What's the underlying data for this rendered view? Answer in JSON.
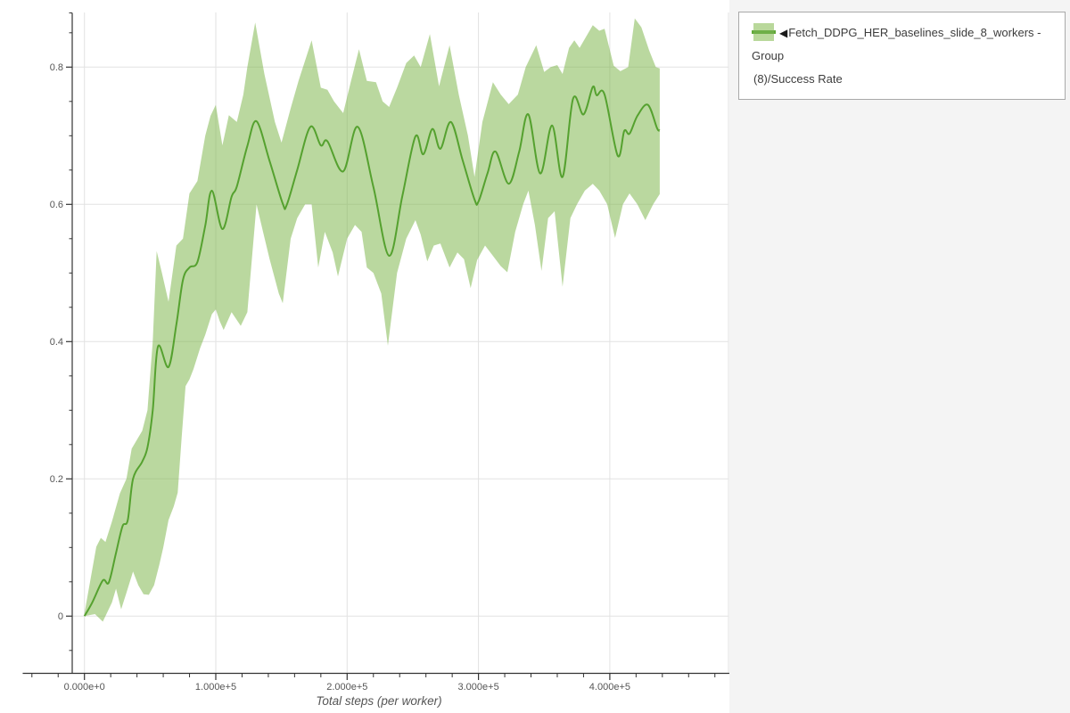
{
  "page": {
    "canvas_background": "#ffffff",
    "panel_background": "#f4f4f4"
  },
  "legend": {
    "marker": "◀",
    "series_name": "Fetch_DDPG_HER_baselines_slide_8_workers - Group (8)/Success Rate",
    "label_lines": [
      "Fetch_DDPG_HER_baselines_slide_8_workers - Group",
      "(8)/Success Rate"
    ]
  },
  "chart_data": {
    "type": "line",
    "title": "",
    "xlabel": "Total steps (per worker)",
    "ylabel": "",
    "grid": true,
    "legend_position": "top-right",
    "xlim": [
      -47000,
      491000
    ],
    "ylim": [
      -0.0835,
      0.879
    ],
    "x_ticks": [
      {
        "value": 0,
        "label": "0.000e+0"
      },
      {
        "value": 100000,
        "label": "1.000e+5"
      },
      {
        "value": 200000,
        "label": "2.000e+5"
      },
      {
        "value": 300000,
        "label": "3.000e+5"
      },
      {
        "value": 400000,
        "label": "4.000e+5"
      }
    ],
    "y_ticks": [
      {
        "value": 0,
        "label": "0"
      },
      {
        "value": 0.2,
        "label": "0.2"
      },
      {
        "value": 0.4,
        "label": "0.4"
      },
      {
        "value": 0.6,
        "label": "0.6"
      },
      {
        "value": 0.8,
        "label": "0.8"
      }
    ],
    "x_minor_step": 20000,
    "x_minor_range": [
      -40000,
      480000
    ],
    "y_minor_step": 0.05,
    "y_minor_range": [
      -0.05,
      0.85
    ],
    "colors": {
      "line": "#55a12f",
      "band_fill": "#76b240",
      "band_opacity": 0.5,
      "grid": "#e2e2e2",
      "axis": "#333333",
      "tick_label": "#555555",
      "axis_title": "#555555"
    },
    "series": [
      {
        "name": "Fetch_DDPG_HER_baselines_slide_8_workers - Group (8)/Success Rate",
        "mean": [
          [
            0,
            0.0
          ],
          [
            6000,
            0.02
          ],
          [
            14000,
            0.052
          ],
          [
            18500,
            0.049
          ],
          [
            24000,
            0.092
          ],
          [
            29000,
            0.131
          ],
          [
            33000,
            0.14
          ],
          [
            37000,
            0.2
          ],
          [
            44000,
            0.225
          ],
          [
            48000,
            0.246
          ],
          [
            52000,
            0.3
          ],
          [
            56000,
            0.393
          ],
          [
            64000,
            0.363
          ],
          [
            70000,
            0.425
          ],
          [
            75000,
            0.49
          ],
          [
            80000,
            0.508
          ],
          [
            86000,
            0.516
          ],
          [
            92000,
            0.569
          ],
          [
            97000,
            0.62
          ],
          [
            105000,
            0.564
          ],
          [
            112000,
            0.611
          ],
          [
            116000,
            0.626
          ],
          [
            124000,
            0.685
          ],
          [
            131000,
            0.721
          ],
          [
            141000,
            0.663
          ],
          [
            151000,
            0.601
          ],
          [
            154000,
            0.599
          ],
          [
            162000,
            0.65
          ],
          [
            172000,
            0.713
          ],
          [
            180000,
            0.686
          ],
          [
            185000,
            0.692
          ],
          [
            197000,
            0.648
          ],
          [
            208000,
            0.713
          ],
          [
            220000,
            0.625
          ],
          [
            232000,
            0.525
          ],
          [
            242000,
            0.612
          ],
          [
            252000,
            0.699
          ],
          [
            258000,
            0.673
          ],
          [
            265000,
            0.71
          ],
          [
            271000,
            0.681
          ],
          [
            279000,
            0.72
          ],
          [
            288000,
            0.664
          ],
          [
            297000,
            0.607
          ],
          [
            300000,
            0.604
          ],
          [
            307000,
            0.646
          ],
          [
            313000,
            0.677
          ],
          [
            323000,
            0.63
          ],
          [
            331000,
            0.677
          ],
          [
            338000,
            0.731
          ],
          [
            347000,
            0.645
          ],
          [
            356000,
            0.715
          ],
          [
            364000,
            0.64
          ],
          [
            372000,
            0.754
          ],
          [
            380000,
            0.731
          ],
          [
            387000,
            0.771
          ],
          [
            390000,
            0.759
          ],
          [
            396000,
            0.76
          ],
          [
            406000,
            0.671
          ],
          [
            411000,
            0.707
          ],
          [
            415000,
            0.703
          ],
          [
            421000,
            0.729
          ],
          [
            429000,
            0.745
          ],
          [
            436000,
            0.711
          ],
          [
            438000,
            0.708
          ]
        ],
        "band_upper": [
          [
            0,
            0.004
          ],
          [
            9000,
            0.101
          ],
          [
            12500,
            0.114
          ],
          [
            16000,
            0.108
          ],
          [
            21000,
            0.138
          ],
          [
            27000,
            0.179
          ],
          [
            32000,
            0.2
          ],
          [
            36000,
            0.244
          ],
          [
            44000,
            0.27
          ],
          [
            48000,
            0.3
          ],
          [
            52000,
            0.4
          ],
          [
            55000,
            0.532
          ],
          [
            59000,
            0.5
          ],
          [
            64000,
            0.458
          ],
          [
            70000,
            0.54
          ],
          [
            75000,
            0.55
          ],
          [
            80000,
            0.616
          ],
          [
            86000,
            0.634
          ],
          [
            92000,
            0.7
          ],
          [
            96000,
            0.729
          ],
          [
            100000,
            0.745
          ],
          [
            105000,
            0.686
          ],
          [
            110000,
            0.73
          ],
          [
            116000,
            0.72
          ],
          [
            121000,
            0.76
          ],
          [
            124000,
            0.8
          ],
          [
            130000,
            0.865
          ],
          [
            137000,
            0.79
          ],
          [
            145000,
            0.72
          ],
          [
            150000,
            0.69
          ],
          [
            157000,
            0.74
          ],
          [
            163000,
            0.78
          ],
          [
            173000,
            0.839
          ],
          [
            180000,
            0.77
          ],
          [
            185000,
            0.767
          ],
          [
            190000,
            0.75
          ],
          [
            197000,
            0.733
          ],
          [
            203000,
            0.78
          ],
          [
            209000,
            0.826
          ],
          [
            215000,
            0.78
          ],
          [
            222000,
            0.778
          ],
          [
            227000,
            0.75
          ],
          [
            232000,
            0.742
          ],
          [
            238000,
            0.77
          ],
          [
            245000,
            0.806
          ],
          [
            251000,
            0.817
          ],
          [
            256000,
            0.8
          ],
          [
            263000,
            0.848
          ],
          [
            270000,
            0.772
          ],
          [
            278000,
            0.832
          ],
          [
            285000,
            0.76
          ],
          [
            292000,
            0.7
          ],
          [
            297000,
            0.64
          ],
          [
            303000,
            0.72
          ],
          [
            311000,
            0.778
          ],
          [
            317000,
            0.76
          ],
          [
            323000,
            0.746
          ],
          [
            330000,
            0.76
          ],
          [
            336000,
            0.8
          ],
          [
            344000,
            0.832
          ],
          [
            350000,
            0.793
          ],
          [
            355000,
            0.8
          ],
          [
            360000,
            0.803
          ],
          [
            364000,
            0.79
          ],
          [
            369000,
            0.828
          ],
          [
            373000,
            0.839
          ],
          [
            377000,
            0.828
          ],
          [
            387000,
            0.861
          ],
          [
            392000,
            0.853
          ],
          [
            396000,
            0.856
          ],
          [
            403000,
            0.802
          ],
          [
            408000,
            0.794
          ],
          [
            414000,
            0.8
          ],
          [
            419000,
            0.871
          ],
          [
            424000,
            0.858
          ],
          [
            430000,
            0.824
          ],
          [
            435000,
            0.8
          ],
          [
            438000,
            0.798
          ]
        ],
        "band_lower": [
          [
            0,
            0.0
          ],
          [
            8000,
            0.003
          ],
          [
            14000,
            -0.008
          ],
          [
            21000,
            0.02
          ],
          [
            24000,
            0.04
          ],
          [
            28000,
            0.01
          ],
          [
            32000,
            0.034
          ],
          [
            37000,
            0.065
          ],
          [
            41000,
            0.045
          ],
          [
            45000,
            0.032
          ],
          [
            49000,
            0.031
          ],
          [
            53000,
            0.045
          ],
          [
            57000,
            0.075
          ],
          [
            60000,
            0.1
          ],
          [
            64000,
            0.14
          ],
          [
            68000,
            0.16
          ],
          [
            71000,
            0.18
          ],
          [
            74000,
            0.26
          ],
          [
            77000,
            0.335
          ],
          [
            80000,
            0.345
          ],
          [
            83000,
            0.36
          ],
          [
            88000,
            0.39
          ],
          [
            92000,
            0.41
          ],
          [
            97000,
            0.44
          ],
          [
            100000,
            0.447
          ],
          [
            103000,
            0.43
          ],
          [
            106000,
            0.417
          ],
          [
            112000,
            0.443
          ],
          [
            119000,
            0.423
          ],
          [
            124000,
            0.443
          ],
          [
            131000,
            0.6
          ],
          [
            136000,
            0.56
          ],
          [
            141000,
            0.52
          ],
          [
            148000,
            0.47
          ],
          [
            151000,
            0.456
          ],
          [
            157000,
            0.55
          ],
          [
            162000,
            0.58
          ],
          [
            168000,
            0.6
          ],
          [
            173000,
            0.6
          ],
          [
            178000,
            0.508
          ],
          [
            183000,
            0.56
          ],
          [
            189000,
            0.53
          ],
          [
            193000,
            0.495
          ],
          [
            200000,
            0.55
          ],
          [
            206000,
            0.57
          ],
          [
            211000,
            0.56
          ],
          [
            215000,
            0.508
          ],
          [
            220000,
            0.5
          ],
          [
            226000,
            0.47
          ],
          [
            231000,
            0.394
          ],
          [
            238000,
            0.5
          ],
          [
            245000,
            0.55
          ],
          [
            252000,
            0.577
          ],
          [
            256000,
            0.556
          ],
          [
            261000,
            0.517
          ],
          [
            266000,
            0.54
          ],
          [
            271000,
            0.543
          ],
          [
            278000,
            0.508
          ],
          [
            284000,
            0.53
          ],
          [
            289000,
            0.52
          ],
          [
            294000,
            0.478
          ],
          [
            299000,
            0.519
          ],
          [
            305000,
            0.54
          ],
          [
            311000,
            0.525
          ],
          [
            317000,
            0.51
          ],
          [
            322000,
            0.501
          ],
          [
            328000,
            0.56
          ],
          [
            334000,
            0.6
          ],
          [
            338000,
            0.62
          ],
          [
            343000,
            0.57
          ],
          [
            348000,
            0.503
          ],
          [
            353000,
            0.58
          ],
          [
            358000,
            0.59
          ],
          [
            364000,
            0.48
          ],
          [
            370000,
            0.58
          ],
          [
            375000,
            0.6
          ],
          [
            381000,
            0.62
          ],
          [
            387000,
            0.63
          ],
          [
            392000,
            0.62
          ],
          [
            398000,
            0.6
          ],
          [
            404000,
            0.551
          ],
          [
            410000,
            0.6
          ],
          [
            415000,
            0.616
          ],
          [
            421000,
            0.6
          ],
          [
            427000,
            0.577
          ],
          [
            433000,
            0.6
          ],
          [
            438000,
            0.615
          ]
        ]
      }
    ]
  }
}
